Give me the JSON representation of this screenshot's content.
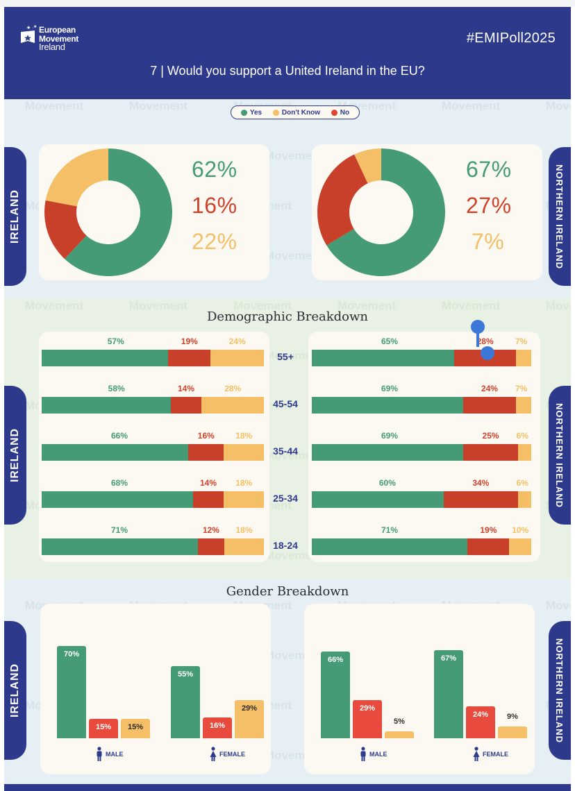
{
  "header": {
    "logo": {
      "line1": "European",
      "line2": "Movement",
      "line3": "Ireland"
    },
    "hashtag": "#EMIPoll2025",
    "question": "7 | Would you support a United Ireland in the EU?"
  },
  "legend": [
    {
      "label": "Yes",
      "color": "#459b76"
    },
    {
      "label": "Don't Know",
      "color": "#f4bf66"
    },
    {
      "label": "No",
      "color": "#e0432f"
    }
  ],
  "colors": {
    "yes": "#459b76",
    "no_bar": "#c9402a",
    "no_text": "#d1422b",
    "dont_know": "#f4bf66",
    "no_gender": "#e84a3d",
    "navy": "#2d3a8c"
  },
  "side_labels": {
    "ireland": "IRELAND",
    "northern_ireland": "NORTHERN IRELAND"
  },
  "sections": {
    "demographic": "Demographic Breakdown",
    "gender": "Gender Breakdown"
  },
  "chart_data": [
    {
      "type": "pie",
      "title": "Ireland",
      "categories": [
        "Yes",
        "No",
        "Don't Know"
      ],
      "values": [
        62,
        16,
        22
      ]
    },
    {
      "type": "pie",
      "title": "Northern Ireland",
      "categories": [
        "Yes",
        "No",
        "Don't Know"
      ],
      "values": [
        67,
        27,
        7
      ]
    },
    {
      "type": "bar",
      "title": "Demographic Breakdown - Ireland",
      "categories": [
        "55+",
        "45-54",
        "35-44",
        "25-34",
        "18-24"
      ],
      "series": [
        {
          "name": "Yes",
          "values": [
            57,
            58,
            66,
            68,
            71
          ]
        },
        {
          "name": "No",
          "values": [
            19,
            14,
            16,
            14,
            12
          ]
        },
        {
          "name": "Don't Know",
          "values": [
            24,
            28,
            18,
            18,
            18
          ]
        }
      ]
    },
    {
      "type": "bar",
      "title": "Demographic Breakdown - Northern Ireland",
      "categories": [
        "55+",
        "45-54",
        "35-44",
        "25-34",
        "18-24"
      ],
      "series": [
        {
          "name": "Yes",
          "values": [
            65,
            69,
            69,
            60,
            71
          ]
        },
        {
          "name": "No",
          "values": [
            28,
            24,
            25,
            34,
            19
          ]
        },
        {
          "name": "Don't Know",
          "values": [
            7,
            7,
            6,
            6,
            10
          ]
        }
      ]
    },
    {
      "type": "bar",
      "title": "Gender Breakdown - Ireland",
      "categories": [
        "MALE",
        "FEMALE"
      ],
      "series": [
        {
          "name": "Yes",
          "values": [
            70,
            55
          ]
        },
        {
          "name": "No",
          "values": [
            15,
            16
          ]
        },
        {
          "name": "Don't Know",
          "values": [
            15,
            29
          ]
        }
      ]
    },
    {
      "type": "bar",
      "title": "Gender Breakdown - Northern Ireland",
      "categories": [
        "MALE",
        "FEMALE"
      ],
      "series": [
        {
          "name": "Yes",
          "values": [
            66,
            67
          ]
        },
        {
          "name": "No",
          "values": [
            29,
            24
          ]
        },
        {
          "name": "Don't Know",
          "values": [
            5,
            9
          ]
        }
      ]
    }
  ]
}
